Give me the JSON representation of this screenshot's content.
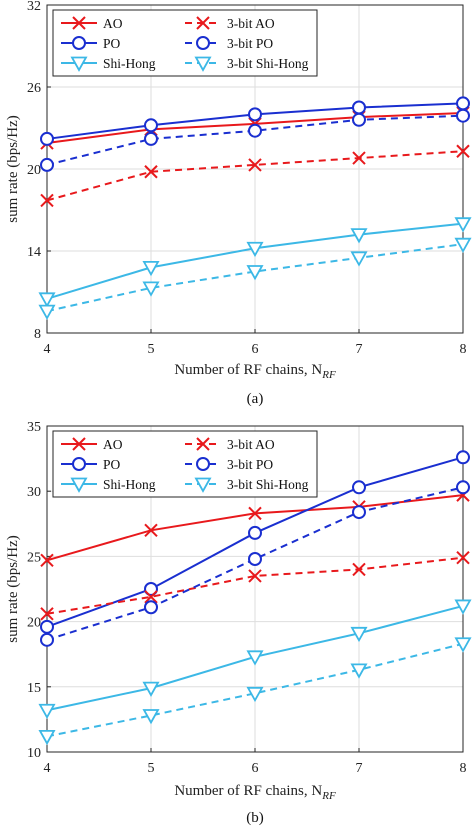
{
  "charts": [
    {
      "type": "line",
      "caption": "(a)",
      "xlabel": "Number of RF chains, N",
      "xlabel_sub": "RF",
      "ylabel": "sum rate (bps/Hz)",
      "x": [
        4,
        5,
        6,
        7,
        8
      ],
      "xlim": [
        4,
        8
      ],
      "ylim": [
        8,
        32
      ],
      "yticks": [
        8,
        14,
        20,
        26,
        32
      ],
      "grid": true,
      "legend_position": "top",
      "series": [
        {
          "name": "AO",
          "marker": "x",
          "dash": "solid",
          "color": "#e8191c",
          "values": [
            21.9,
            22.9,
            23.3,
            23.8,
            24.1
          ]
        },
        {
          "name": "PO",
          "marker": "o",
          "dash": "solid",
          "color": "#1a2fd0",
          "values": [
            22.2,
            23.2,
            24.0,
            24.5,
            24.8
          ]
        },
        {
          "name": "Shi-Hong",
          "marker": "v",
          "dash": "solid",
          "color": "#3cb8e6",
          "values": [
            10.5,
            12.8,
            14.2,
            15.2,
            16.0
          ]
        },
        {
          "name": "3-bit AO",
          "marker": "x",
          "dash": "dashed",
          "color": "#e8191c",
          "values": [
            17.7,
            19.8,
            20.3,
            20.8,
            21.3
          ]
        },
        {
          "name": "3-bit PO",
          "marker": "o",
          "dash": "dashed",
          "color": "#1a2fd0",
          "values": [
            20.3,
            22.2,
            22.8,
            23.6,
            23.9
          ]
        },
        {
          "name": "3-bit Shi-Hong",
          "marker": "v",
          "dash": "dashed",
          "color": "#3cb8e6",
          "values": [
            9.6,
            11.3,
            12.5,
            13.5,
            14.5
          ]
        }
      ]
    },
    {
      "type": "line",
      "caption": "(b)",
      "xlabel": "Number of RF chains, N",
      "xlabel_sub": "RF",
      "ylabel": "sum rate (bps/Hz)",
      "x": [
        4,
        5,
        6,
        7,
        8
      ],
      "xlim": [
        4,
        8
      ],
      "ylim": [
        10,
        35
      ],
      "yticks": [
        10,
        15,
        20,
        25,
        30,
        35
      ],
      "grid": true,
      "legend_position": "top",
      "series": [
        {
          "name": "AO",
          "marker": "x",
          "dash": "solid",
          "color": "#e8191c",
          "values": [
            24.7,
            27.0,
            28.3,
            28.8,
            29.7
          ]
        },
        {
          "name": "PO",
          "marker": "o",
          "dash": "solid",
          "color": "#1a2fd0",
          "values": [
            19.6,
            22.5,
            26.8,
            30.3,
            32.6
          ]
        },
        {
          "name": "Shi-Hong",
          "marker": "v",
          "dash": "solid",
          "color": "#3cb8e6",
          "values": [
            13.2,
            14.9,
            17.3,
            19.1,
            21.2
          ]
        },
        {
          "name": "3-bit AO",
          "marker": "x",
          "dash": "dashed",
          "color": "#e8191c",
          "values": [
            20.6,
            21.9,
            23.5,
            24.0,
            24.9
          ]
        },
        {
          "name": "3-bit PO",
          "marker": "o",
          "dash": "dashed",
          "color": "#1a2fd0",
          "values": [
            18.6,
            21.1,
            24.8,
            28.4,
            30.3
          ]
        },
        {
          "name": "3-bit Shi-Hong",
          "marker": "v",
          "dash": "dashed",
          "color": "#3cb8e6",
          "values": [
            11.2,
            12.8,
            14.5,
            16.3,
            18.3
          ]
        }
      ]
    }
  ],
  "chart_data": [
    {
      "type": "line",
      "x": [
        4,
        5,
        6,
        7,
        8
      ],
      "xlabel": "Number of RF chains, N_RF",
      "ylabel": "sum rate (bps/Hz)",
      "ylim": [
        8,
        32
      ],
      "series": [
        {
          "name": "AO",
          "values": [
            21.9,
            22.9,
            23.3,
            23.8,
            24.1
          ]
        },
        {
          "name": "PO",
          "values": [
            22.2,
            23.2,
            24.0,
            24.5,
            24.8
          ]
        },
        {
          "name": "Shi-Hong",
          "values": [
            10.5,
            12.8,
            14.2,
            15.2,
            16.0
          ]
        },
        {
          "name": "3-bit AO",
          "values": [
            17.7,
            19.8,
            20.3,
            20.8,
            21.3
          ]
        },
        {
          "name": "3-bit PO",
          "values": [
            20.3,
            22.2,
            22.8,
            23.6,
            23.9
          ]
        },
        {
          "name": "3-bit Shi-Hong",
          "values": [
            9.6,
            11.3,
            12.5,
            13.5,
            14.5
          ]
        }
      ]
    },
    {
      "type": "line",
      "x": [
        4,
        5,
        6,
        7,
        8
      ],
      "xlabel": "Number of RF chains, N_RF",
      "ylabel": "sum rate (bps/Hz)",
      "ylim": [
        10,
        35
      ],
      "series": [
        {
          "name": "AO",
          "values": [
            24.7,
            27.0,
            28.3,
            28.8,
            29.7
          ]
        },
        {
          "name": "PO",
          "values": [
            19.6,
            22.5,
            26.8,
            30.3,
            32.6
          ]
        },
        {
          "name": "Shi-Hong",
          "values": [
            13.2,
            14.9,
            17.3,
            19.1,
            21.2
          ]
        },
        {
          "name": "3-bit AO",
          "values": [
            20.6,
            21.9,
            23.5,
            24.0,
            24.9
          ]
        },
        {
          "name": "3-bit PO",
          "values": [
            18.6,
            21.1,
            24.8,
            28.4,
            30.3
          ]
        },
        {
          "name": "3-bit Shi-Hong",
          "values": [
            11.2,
            12.8,
            14.5,
            16.3,
            18.3
          ]
        }
      ]
    }
  ]
}
